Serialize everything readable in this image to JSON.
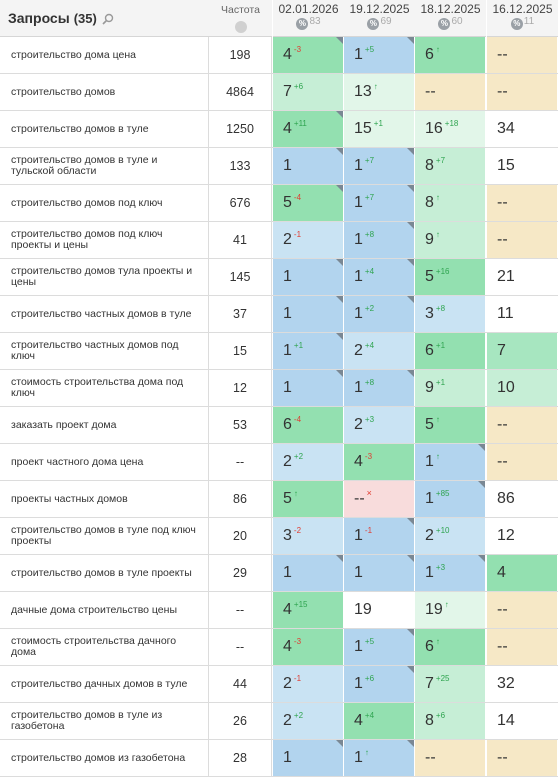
{
  "header": {
    "title": "Запросы",
    "count": "(35)",
    "frequency_label": "Частота",
    "dates": [
      {
        "date": "02.01.2026",
        "pct": "83"
      },
      {
        "date": "19.12.2025",
        "pct": "69"
      },
      {
        "date": "18.12.2025",
        "pct": "60"
      },
      {
        "date": "16.12.2025",
        "pct": "11"
      }
    ],
    "icons": {
      "search": "search-icon",
      "globe": "globe-icon",
      "percent": "percent-icon"
    }
  },
  "colors": {
    "blue": "#b2d4ee",
    "light_blue": "#c9e3f3",
    "green": "#93e0b0",
    "light_green": "#c6eed6",
    "very_light_green": "#e2f6e9",
    "beige": "#f6e8c6",
    "red": "#f8dcdc",
    "white": "#ffffff",
    "mint": "#a7e6c0"
  },
  "rows": [
    {
      "query": "строительство дома цена",
      "freq": "198",
      "cells": [
        {
          "p": "4",
          "d": "-3",
          "dt": "down",
          "bg": "green",
          "tri": true
        },
        {
          "p": "1",
          "d": "+5",
          "dt": "up",
          "bg": "blue",
          "tri": true
        },
        {
          "p": "6",
          "d": "↑",
          "dt": "up",
          "bg": "green",
          "tri": false
        },
        {
          "p": "--",
          "d": "",
          "dt": "",
          "bg": "beige",
          "tri": false
        }
      ]
    },
    {
      "query": "строительство домов",
      "freq": "4864",
      "cells": [
        {
          "p": "7",
          "d": "+6",
          "dt": "up",
          "bg": "light_green",
          "tri": false
        },
        {
          "p": "13",
          "d": "↑",
          "dt": "up",
          "bg": "very_light_green",
          "tri": false
        },
        {
          "p": "--",
          "d": "",
          "dt": "",
          "bg": "beige",
          "tri": false
        },
        {
          "p": "--",
          "d": "",
          "dt": "",
          "bg": "beige",
          "tri": false
        }
      ]
    },
    {
      "query": "строительство домов в туле",
      "freq": "1250",
      "cells": [
        {
          "p": "4",
          "d": "+11",
          "dt": "up",
          "bg": "green",
          "tri": true
        },
        {
          "p": "15",
          "d": "+1",
          "dt": "up",
          "bg": "very_light_green",
          "tri": false
        },
        {
          "p": "16",
          "d": "+18",
          "dt": "up",
          "bg": "very_light_green",
          "tri": false
        },
        {
          "p": "34",
          "d": "",
          "dt": "",
          "bg": "white",
          "tri": false
        }
      ]
    },
    {
      "query": "строительство домов в туле и тульской области",
      "freq": "133",
      "cells": [
        {
          "p": "1",
          "d": "",
          "dt": "",
          "bg": "blue",
          "tri": true
        },
        {
          "p": "1",
          "d": "+7",
          "dt": "up",
          "bg": "blue",
          "tri": true
        },
        {
          "p": "8",
          "d": "+7",
          "dt": "up",
          "bg": "light_green",
          "tri": false
        },
        {
          "p": "15",
          "d": "",
          "dt": "",
          "bg": "white",
          "tri": false
        }
      ]
    },
    {
      "query": "строительство домов под ключ",
      "freq": "676",
      "cells": [
        {
          "p": "5",
          "d": "-4",
          "dt": "down",
          "bg": "green",
          "tri": true
        },
        {
          "p": "1",
          "d": "+7",
          "dt": "up",
          "bg": "blue",
          "tri": true
        },
        {
          "p": "8",
          "d": "↑",
          "dt": "up",
          "bg": "light_green",
          "tri": false
        },
        {
          "p": "--",
          "d": "",
          "dt": "",
          "bg": "beige",
          "tri": false
        }
      ]
    },
    {
      "query": "строительство домов под ключ проекты и цены",
      "freq": "41",
      "cells": [
        {
          "p": "2",
          "d": "-1",
          "dt": "down",
          "bg": "light_blue",
          "tri": false
        },
        {
          "p": "1",
          "d": "+8",
          "dt": "up",
          "bg": "blue",
          "tri": true
        },
        {
          "p": "9",
          "d": "↑",
          "dt": "up",
          "bg": "light_green",
          "tri": false
        },
        {
          "p": "--",
          "d": "",
          "dt": "",
          "bg": "beige",
          "tri": false
        }
      ]
    },
    {
      "query": "строительство домов тула проекты и цены",
      "freq": "145",
      "cells": [
        {
          "p": "1",
          "d": "",
          "dt": "",
          "bg": "blue",
          "tri": true
        },
        {
          "p": "1",
          "d": "+4",
          "dt": "up",
          "bg": "blue",
          "tri": true
        },
        {
          "p": "5",
          "d": "+16",
          "dt": "up",
          "bg": "green",
          "tri": false
        },
        {
          "p": "21",
          "d": "",
          "dt": "",
          "bg": "white",
          "tri": false
        }
      ]
    },
    {
      "query": "строительство частных домов в туле",
      "freq": "37",
      "cells": [
        {
          "p": "1",
          "d": "",
          "dt": "",
          "bg": "blue",
          "tri": true
        },
        {
          "p": "1",
          "d": "+2",
          "dt": "up",
          "bg": "blue",
          "tri": true
        },
        {
          "p": "3",
          "d": "+8",
          "dt": "up",
          "bg": "light_blue",
          "tri": false
        },
        {
          "p": "11",
          "d": "",
          "dt": "",
          "bg": "white",
          "tri": false
        }
      ]
    },
    {
      "query": "строительство частных домов под ключ",
      "freq": "15",
      "cells": [
        {
          "p": "1",
          "d": "+1",
          "dt": "up",
          "bg": "blue",
          "tri": true
        },
        {
          "p": "2",
          "d": "+4",
          "dt": "up",
          "bg": "light_blue",
          "tri": false
        },
        {
          "p": "6",
          "d": "+1",
          "dt": "up",
          "bg": "green",
          "tri": false
        },
        {
          "p": "7",
          "d": "",
          "dt": "",
          "bg": "mint",
          "tri": false
        }
      ]
    },
    {
      "query": "стоимость строительства дома под ключ",
      "freq": "12",
      "cells": [
        {
          "p": "1",
          "d": "",
          "dt": "",
          "bg": "blue",
          "tri": true
        },
        {
          "p": "1",
          "d": "+8",
          "dt": "up",
          "bg": "blue",
          "tri": true
        },
        {
          "p": "9",
          "d": "+1",
          "dt": "up",
          "bg": "light_green",
          "tri": false
        },
        {
          "p": "10",
          "d": "",
          "dt": "",
          "bg": "light_green",
          "tri": false
        }
      ]
    },
    {
      "query": "заказать проект дома",
      "freq": "53",
      "cells": [
        {
          "p": "6",
          "d": "-4",
          "dt": "down",
          "bg": "green",
          "tri": false
        },
        {
          "p": "2",
          "d": "+3",
          "dt": "up",
          "bg": "light_blue",
          "tri": false
        },
        {
          "p": "5",
          "d": "↑",
          "dt": "up",
          "bg": "green",
          "tri": false
        },
        {
          "p": "--",
          "d": "",
          "dt": "",
          "bg": "beige",
          "tri": false
        }
      ]
    },
    {
      "query": "проект частного дома цена",
      "freq": "--",
      "cells": [
        {
          "p": "2",
          "d": "+2",
          "dt": "up",
          "bg": "light_blue",
          "tri": false
        },
        {
          "p": "4",
          "d": "-3",
          "dt": "down",
          "bg": "green",
          "tri": false
        },
        {
          "p": "1",
          "d": "↑",
          "dt": "up",
          "bg": "blue",
          "tri": true
        },
        {
          "p": "--",
          "d": "",
          "dt": "",
          "bg": "beige",
          "tri": false
        }
      ]
    },
    {
      "query": "проекты частных домов",
      "freq": "86",
      "cells": [
        {
          "p": "5",
          "d": "↑",
          "dt": "up",
          "bg": "green",
          "tri": false
        },
        {
          "p": "--",
          "d": "×",
          "dt": "x",
          "bg": "red",
          "tri": false
        },
        {
          "p": "1",
          "d": "+85",
          "dt": "up",
          "bg": "blue",
          "tri": true
        },
        {
          "p": "86",
          "d": "",
          "dt": "",
          "bg": "white",
          "tri": false
        }
      ]
    },
    {
      "query": "строительство домов в туле под ключ проекты",
      "freq": "20",
      "cells": [
        {
          "p": "3",
          "d": "-2",
          "dt": "down",
          "bg": "light_blue",
          "tri": false
        },
        {
          "p": "1",
          "d": "-1",
          "dt": "down",
          "bg": "blue",
          "tri": true
        },
        {
          "p": "2",
          "d": "+10",
          "dt": "up",
          "bg": "light_blue",
          "tri": false
        },
        {
          "p": "12",
          "d": "",
          "dt": "",
          "bg": "white",
          "tri": false
        }
      ]
    },
    {
      "query": "строительство домов в туле проекты",
      "freq": "29",
      "cells": [
        {
          "p": "1",
          "d": "",
          "dt": "",
          "bg": "blue",
          "tri": true
        },
        {
          "p": "1",
          "d": "",
          "dt": "",
          "bg": "blue",
          "tri": true
        },
        {
          "p": "1",
          "d": "+3",
          "dt": "up",
          "bg": "blue",
          "tri": true
        },
        {
          "p": "4",
          "d": "",
          "dt": "",
          "bg": "green",
          "tri": false
        }
      ]
    },
    {
      "query": "дачные дома строительство цены",
      "freq": "--",
      "cells": [
        {
          "p": "4",
          "d": "+15",
          "dt": "up",
          "bg": "green",
          "tri": false
        },
        {
          "p": "19",
          "d": "",
          "dt": "",
          "bg": "white",
          "tri": false
        },
        {
          "p": "19",
          "d": "↑",
          "dt": "up",
          "bg": "very_light_green",
          "tri": false
        },
        {
          "p": "--",
          "d": "",
          "dt": "",
          "bg": "beige",
          "tri": false
        }
      ]
    },
    {
      "query": "стоимость строительства дачного дома",
      "freq": "--",
      "cells": [
        {
          "p": "4",
          "d": "-3",
          "dt": "down",
          "bg": "green",
          "tri": false
        },
        {
          "p": "1",
          "d": "+5",
          "dt": "up",
          "bg": "blue",
          "tri": true
        },
        {
          "p": "6",
          "d": "↑",
          "dt": "up",
          "bg": "green",
          "tri": false
        },
        {
          "p": "--",
          "d": "",
          "dt": "",
          "bg": "beige",
          "tri": false
        }
      ]
    },
    {
      "query": "строительство дачных домов в туле",
      "freq": "44",
      "cells": [
        {
          "p": "2",
          "d": "-1",
          "dt": "down",
          "bg": "light_blue",
          "tri": false
        },
        {
          "p": "1",
          "d": "+6",
          "dt": "up",
          "bg": "blue",
          "tri": true
        },
        {
          "p": "7",
          "d": "+25",
          "dt": "up",
          "bg": "light_green",
          "tri": false
        },
        {
          "p": "32",
          "d": "",
          "dt": "",
          "bg": "white",
          "tri": false
        }
      ]
    },
    {
      "query": "строительство домов в туле из газобетона",
      "freq": "26",
      "cells": [
        {
          "p": "2",
          "d": "+2",
          "dt": "up",
          "bg": "light_blue",
          "tri": false
        },
        {
          "p": "4",
          "d": "+4",
          "dt": "up",
          "bg": "green",
          "tri": false
        },
        {
          "p": "8",
          "d": "+6",
          "dt": "up",
          "bg": "light_green",
          "tri": false
        },
        {
          "p": "14",
          "d": "",
          "dt": "",
          "bg": "white",
          "tri": false
        }
      ]
    },
    {
      "query": "строительство домов из газобетона",
      "freq": "28",
      "cells": [
        {
          "p": "1",
          "d": "",
          "dt": "",
          "bg": "blue",
          "tri": true
        },
        {
          "p": "1",
          "d": "↑",
          "dt": "up",
          "bg": "blue",
          "tri": true
        },
        {
          "p": "--",
          "d": "",
          "dt": "",
          "bg": "beige",
          "tri": false
        },
        {
          "p": "--",
          "d": "",
          "dt": "",
          "bg": "beige",
          "tri": false
        }
      ]
    }
  ]
}
